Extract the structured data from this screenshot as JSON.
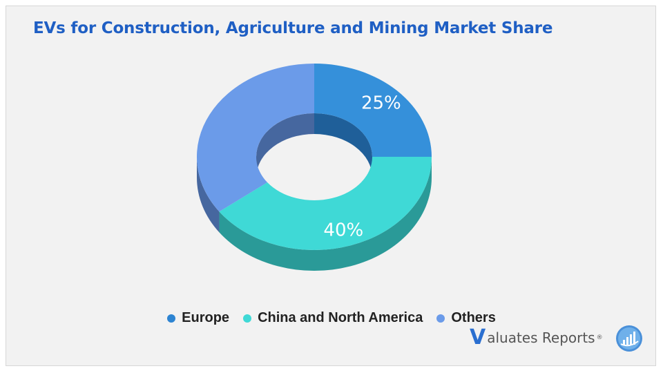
{
  "title": "EVs for Construction, Agriculture and Mining Market Share",
  "chart_data": {
    "type": "pie",
    "title": "EVs for Construction, Agriculture and Mining Market Share",
    "categories": [
      "Europe",
      "China and North America",
      "Others"
    ],
    "values": [
      25,
      40,
      35
    ],
    "labels": [
      "25%",
      "40%",
      ""
    ],
    "colors": [
      "#3590da",
      "#3fd9d6",
      "#6b9be9"
    ],
    "side_colors": [
      "#1f5f99",
      "#2a9a98",
      "#46679f"
    ],
    "legend_position": "bottom"
  },
  "legend": [
    {
      "label": "Europe",
      "color": "#2d84d2"
    },
    {
      "label": "China and North America",
      "color": "#3fd9d6"
    },
    {
      "label": "Others",
      "color": "#6b9be9"
    }
  ],
  "brand": {
    "initial": "V",
    "text": "aluates Reports",
    "mark": "®",
    "logo_icon": "valuates-chart-logo-icon"
  }
}
